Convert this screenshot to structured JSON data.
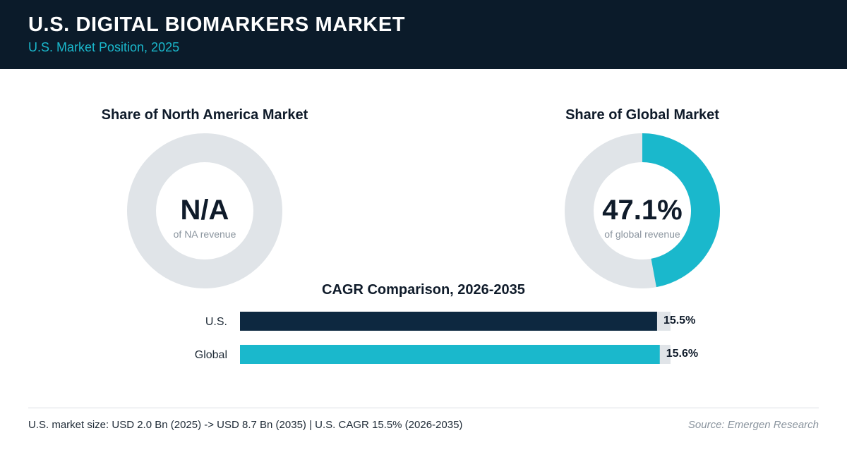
{
  "header": {
    "title": "U.S. DIGITAL BIOMARKERS MARKET",
    "subtitle": "U.S. Market Position, 2025"
  },
  "colors": {
    "header_bg": "#0b1b2a",
    "accent": "#1ab8cc",
    "dark_bar": "#0d2840",
    "track": "#e0e4e8"
  },
  "chart_data": [
    {
      "type": "pie",
      "title": "Share of North America Market",
      "center_value": "N/A",
      "center_caption": "of NA revenue",
      "values": [],
      "note": ""
    },
    {
      "type": "pie",
      "title": "Share of Global Market",
      "center_value": "47.1%",
      "center_caption": "of global revenue",
      "values": [
        47.1,
        52.9
      ]
    },
    {
      "type": "bar",
      "orientation": "horizontal",
      "title": "CAGR Comparison, 2026-2035",
      "categories": [
        "U.S.",
        "Global"
      ],
      "values": [
        15.5,
        15.6
      ],
      "value_labels": [
        "15.5%",
        "15.6%"
      ],
      "xlim": [
        0,
        16
      ]
    }
  ],
  "footer": {
    "note": "U.S. market size: USD 2.0 Bn (2025) -> USD 8.7 Bn (2035)  |  U.S. CAGR 15.5% (2026-2035)",
    "source": "Source: Emergen Research"
  }
}
